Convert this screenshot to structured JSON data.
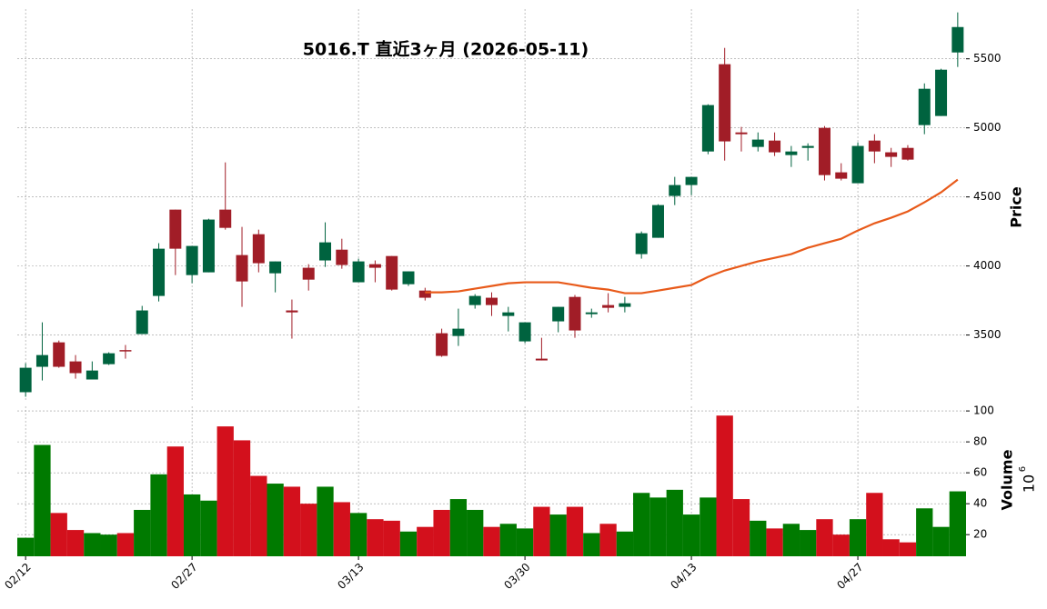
{
  "chart_data": [
    {
      "type": "candlestick",
      "title": "5016.T  直近3ヶ月  (2026-05-11)",
      "ylabel": "Price",
      "categories": [
        "02/12",
        null,
        null,
        null,
        null,
        null,
        null,
        null,
        null,
        null,
        "02/27",
        null,
        null,
        null,
        null,
        null,
        null,
        null,
        null,
        null,
        "03/13",
        null,
        null,
        null,
        null,
        null,
        null,
        null,
        null,
        null,
        "03/30",
        null,
        null,
        null,
        null,
        null,
        null,
        null,
        null,
        null,
        "04/13",
        null,
        null,
        null,
        null,
        null,
        null,
        null,
        null,
        null,
        "04/27",
        null,
        null,
        null,
        null,
        null,
        null
      ],
      "open": [
        3086,
        3270,
        3447,
        3309,
        3178,
        3289,
        3391,
        3507,
        3783,
        4408,
        3934,
        3954,
        4408,
        4079,
        4230,
        3947,
        3678,
        3987,
        4040,
        4118,
        3882,
        4013,
        4072,
        3868,
        3822,
        3513,
        3493,
        3717,
        3770,
        3638,
        3454,
        3329,
        3599,
        3776,
        3651,
        3717,
        3704,
        4086,
        4204,
        4507,
        4586,
        4829,
        5461,
        4967,
        4862,
        4908,
        4803,
        4855,
        5000,
        4678,
        4599,
        4908,
        4823,
        4855,
        5020,
        5086,
        5546
      ],
      "high": [
        3296,
        3592,
        3460,
        3355,
        3309,
        3375,
        3428,
        3711,
        4165,
        4408,
        4145,
        4342,
        4750,
        4283,
        4263,
        4033,
        3757,
        4013,
        4316,
        4197,
        4053,
        4040,
        4072,
        3961,
        3842,
        3546,
        3691,
        3796,
        3809,
        3704,
        3592,
        3480,
        3704,
        3790,
        3691,
        3803,
        3776,
        4250,
        4447,
        4645,
        4645,
        5171,
        5579,
        5007,
        4967,
        4967,
        4869,
        4888,
        5013,
        4744,
        4895,
        4954,
        4855,
        4875,
        5322,
        5428,
        5836
      ],
      "low": [
        3053,
        3171,
        3263,
        3184,
        3178,
        3283,
        3329,
        3507,
        3743,
        3934,
        3875,
        3954,
        4263,
        3704,
        3954,
        3809,
        3474,
        3822,
        3993,
        3980,
        3882,
        3882,
        3822,
        3855,
        3750,
        3342,
        3421,
        3691,
        3638,
        3526,
        3441,
        3316,
        3520,
        3480,
        3625,
        3664,
        3664,
        4053,
        4204,
        4441,
        4513,
        4809,
        4763,
        4829,
        4829,
        4796,
        4717,
        4763,
        4619,
        4619,
        4599,
        4744,
        4717,
        4763,
        4954,
        5086,
        5441
      ],
      "close": [
        3263,
        3355,
        3270,
        3224,
        3243,
        3368,
        3385,
        3678,
        4125,
        4125,
        4145,
        4336,
        4276,
        3888,
        4020,
        4033,
        3664,
        3901,
        4171,
        4007,
        4033,
        3987,
        3829,
        3961,
        3770,
        3349,
        3546,
        3783,
        3717,
        3664,
        3592,
        3316,
        3704,
        3533,
        3664,
        3697,
        3730,
        4237,
        4441,
        4586,
        4645,
        5165,
        4902,
        4954,
        4915,
        4823,
        4829,
        4869,
        4658,
        4632,
        4869,
        4829,
        4790,
        4770,
        5283,
        5421,
        5730
      ],
      "ma": [
        null,
        null,
        null,
        null,
        null,
        null,
        null,
        null,
        null,
        null,
        null,
        null,
        null,
        null,
        null,
        null,
        null,
        null,
        null,
        null,
        null,
        null,
        null,
        null,
        3809,
        3809,
        3816,
        3836,
        3855,
        3875,
        3882,
        3882,
        3882,
        3862,
        3842,
        3829,
        3803,
        3803,
        3822,
        3842,
        3862,
        3921,
        3967,
        4000,
        4033,
        4059,
        4086,
        4132,
        4165,
        4197,
        4257,
        4309,
        4349,
        4395,
        4461,
        4533,
        4625
      ],
      "up_color": "#00633f",
      "down_color": "#a11d27",
      "ma_color": "#e85a1a",
      "ylim": [
        3030,
        5860
      ],
      "yticks": [
        3500,
        4000,
        4500,
        5000,
        5500
      ],
      "grid": true
    },
    {
      "type": "bar",
      "ylabel": "Volume",
      "scale_base": "10",
      "scale_exponent": "6",
      "values": [
        18,
        78,
        34,
        23,
        21,
        20,
        21,
        36,
        59,
        77,
        46,
        42,
        90,
        81,
        58,
        53,
        51,
        40,
        51,
        41,
        34,
        30,
        29,
        22,
        25,
        36,
        43,
        36,
        25,
        27,
        24,
        38,
        33,
        38,
        21,
        27,
        22,
        47,
        44,
        49,
        33,
        44,
        97,
        43,
        29,
        24,
        27,
        23,
        30,
        20,
        30,
        47,
        17,
        15,
        37,
        25,
        48
      ],
      "up_color": "#007a00",
      "down_color": "#d3101c",
      "ylim": [
        6,
        103
      ],
      "yticks": [
        20,
        40,
        60,
        80,
        100
      ],
      "grid": true
    }
  ]
}
